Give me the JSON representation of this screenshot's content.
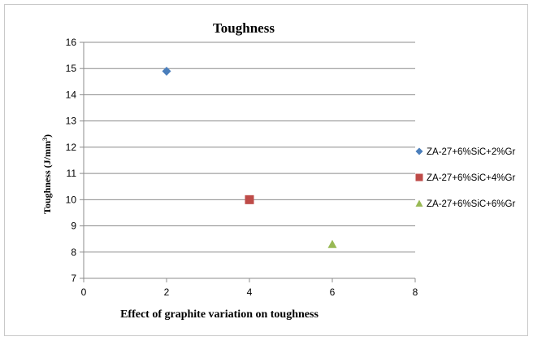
{
  "chart_data": {
    "type": "scatter",
    "title": "Toughness",
    "xlabel": "Effect of graphite variation on toughness",
    "ylabel": "Toughness (J/mm³)",
    "ylabel_parts": {
      "main": "Toughness (J/mm",
      "sup": "3",
      "close": ")"
    },
    "xlim": [
      0,
      8
    ],
    "ylim": [
      7,
      16
    ],
    "x_ticks": [
      "0",
      "2",
      "4",
      "6",
      "8"
    ],
    "y_ticks": [
      "7",
      "8",
      "9",
      "10",
      "11",
      "12",
      "13",
      "14",
      "15",
      "16"
    ],
    "grid": "horizontal",
    "legend_position": "right",
    "series": [
      {
        "name": "ZA-27+6%SiC+2%Gr",
        "marker": "diamond",
        "color": "#4a7ebb",
        "x": [
          2
        ],
        "y": [
          14.9
        ]
      },
      {
        "name": "ZA-27+6%SiC+4%Gr",
        "marker": "square",
        "color": "#be4b48",
        "x": [
          4
        ],
        "y": [
          10.0
        ]
      },
      {
        "name": "ZA-27+6%SiC+6%Gr",
        "marker": "triangle",
        "color": "#98b954",
        "x": [
          6
        ],
        "y": [
          8.3
        ]
      }
    ]
  }
}
